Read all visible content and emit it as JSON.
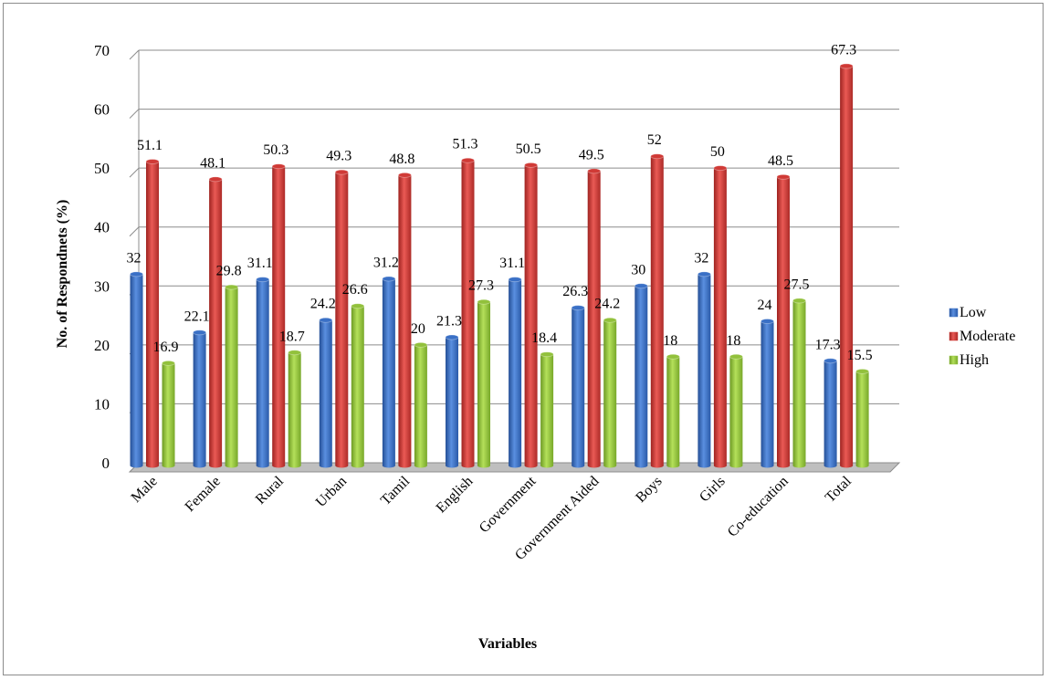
{
  "chart_data": {
    "type": "bar",
    "title": "",
    "xlabel": "Variables",
    "ylabel": "No. of Respondnets (%)",
    "ylim": [
      0,
      70
    ],
    "yticks": [
      0,
      10,
      20,
      30,
      40,
      50,
      60,
      70
    ],
    "grid": true,
    "legend_position": "right",
    "categories": [
      "Male",
      "Female",
      "Rural",
      "Urban",
      "Tamil",
      "English",
      "Government",
      "Government Aided",
      "Boys",
      "Girls",
      "Co-education",
      "Total"
    ],
    "series": [
      {
        "name": "Low",
        "color": "#3a70c6",
        "values": [
          32,
          22.1,
          31.1,
          24.2,
          31.2,
          21.3,
          31.1,
          26.3,
          30,
          32,
          24,
          17.3
        ]
      },
      {
        "name": "Moderate",
        "color": "#d03a36",
        "values": [
          51.1,
          48.1,
          50.3,
          49.3,
          48.8,
          51.3,
          50.5,
          49.5,
          52,
          50,
          48.5,
          67.3
        ]
      },
      {
        "name": "High",
        "color": "#92c13c",
        "values": [
          16.9,
          29.8,
          18.7,
          26.6,
          20,
          27.3,
          18.4,
          24.2,
          18,
          18,
          27.5,
          15.5
        ]
      }
    ]
  }
}
